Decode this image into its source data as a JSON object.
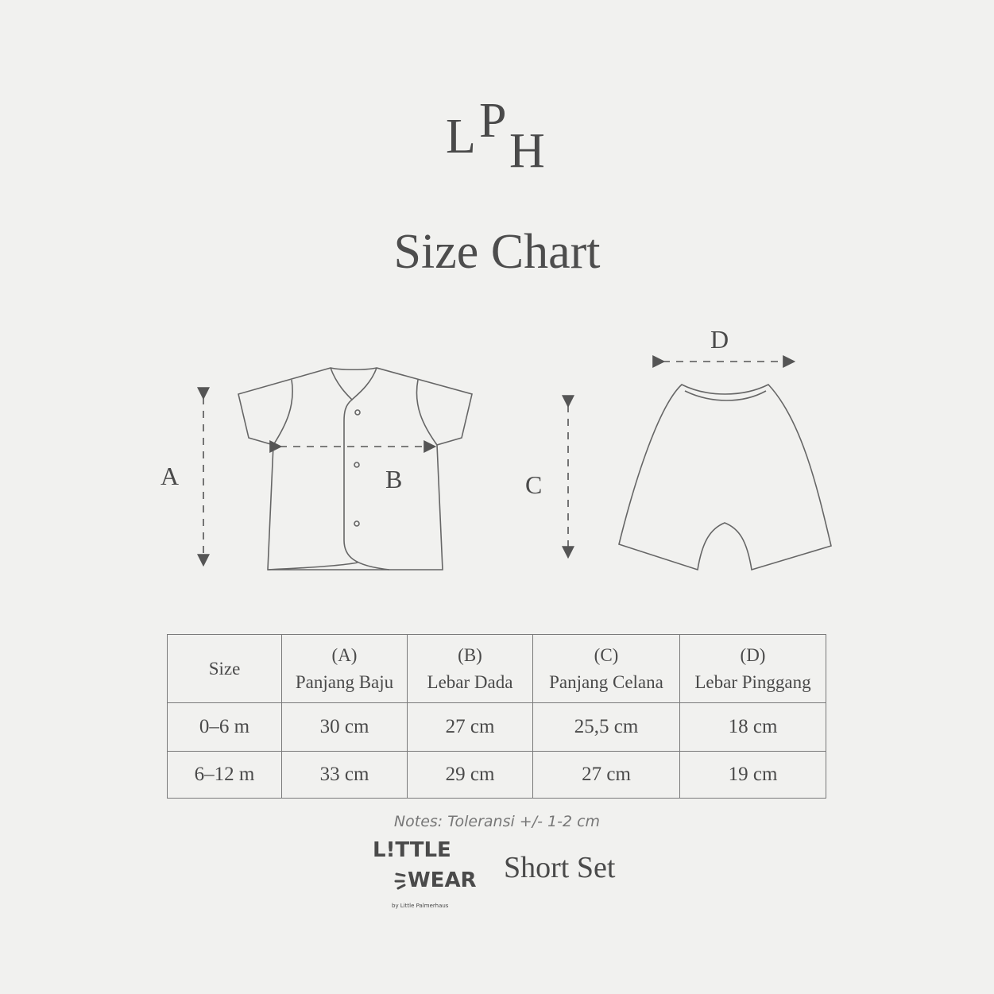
{
  "brand_logo": {
    "letters": [
      "L",
      "P",
      "H"
    ]
  },
  "title": "Size Chart",
  "diagram": {
    "shirt_labels": {
      "a": "A",
      "b": "B"
    },
    "pants_labels": {
      "c": "C",
      "d": "D"
    },
    "line_color": "#555555"
  },
  "table": {
    "headers": [
      {
        "code": "",
        "label": "Size"
      },
      {
        "code": "(A)",
        "label": "Panjang Baju"
      },
      {
        "code": "(B)",
        "label": "Lebar Dada"
      },
      {
        "code": "(C)",
        "label": "Panjang Celana"
      },
      {
        "code": "(D)",
        "label": "Lebar Pinggang"
      }
    ],
    "rows": [
      [
        "0–6 m",
        "30 cm",
        "27 cm",
        "25,5 cm",
        "18 cm"
      ],
      [
        "6–12 m",
        "33 cm",
        "29 cm",
        "27 cm",
        "19 cm"
      ]
    ]
  },
  "notes": "Notes: Toleransi  +/-  1-2 cm",
  "footer_logo": {
    "line1": "L!TTLE",
    "line2": "WEAR",
    "tagline": "by Little Palmerhaus"
  },
  "product_name": "Short Set"
}
